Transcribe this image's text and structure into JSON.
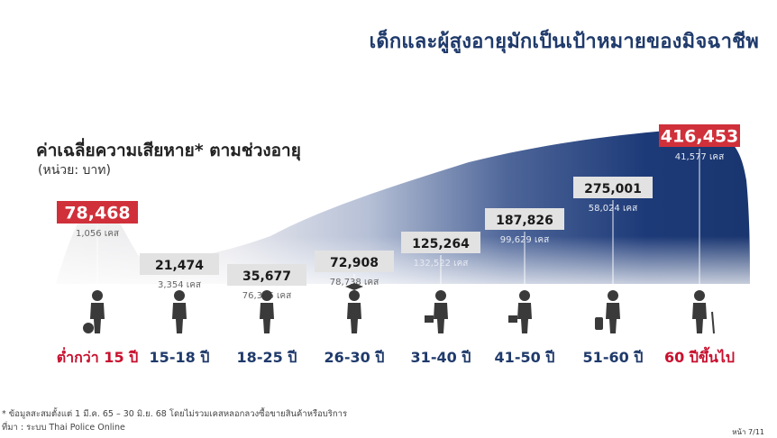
{
  "title": "เด็กและผู้สูงอายุมักเป็นเป้าหมายของมิจฉาชีพ",
  "subtitle": "ค่าเฉลี่ยความเสียหาย* ตามช่วงอายุ",
  "unit_label": "(หน่วย: บาท)",
  "footnote_line1": "* ข้อมูลสะสมตั้งแต่ 1 มี.ค. 65 – 30 มิ.ย. 68 โดยไม่รวมเคสหลอกลวงซื้อขายสินค้าหรือบริการ",
  "footnote_line2": "ที่มา : ระบบ Thai Police Online",
  "page_label": "หน้า 7/11",
  "colors": {
    "highlight": "#d0303a",
    "normal_box": "#e2e2e2",
    "curve_dark": "#1d3a78",
    "curve_light": "#eaeaea",
    "age_normal": "#1f3a6b",
    "age_highlight": "#c8102e"
  },
  "chart_data": {
    "type": "area",
    "title": "ค่าเฉลี่ยความเสียหาย* ตามช่วงอายุ",
    "ylabel": "(หน่วย: บาท)",
    "categories": [
      "ต่ำกว่า 15 ปี",
      "15-18 ปี",
      "18-25 ปี",
      "26-30 ปี",
      "31-40 ปี",
      "41-50 ปี",
      "51-60 ปี",
      "60 ปีขึ้นไป"
    ],
    "values": [
      78468,
      21474,
      35677,
      72908,
      125264,
      187826,
      275001,
      416453
    ],
    "value_labels": [
      "78,468",
      "21,474",
      "35,677",
      "72,908",
      "125,264",
      "187,826",
      "275,001",
      "416,453"
    ],
    "case_labels": [
      "1,056 เคส",
      "3,354 เคส",
      "76,346 เคส",
      "78,738 เคส",
      "132,522 เคส",
      "99,629 เคส",
      "58,024 เคส",
      "41,577 เคส"
    ],
    "highlighted": [
      true,
      false,
      false,
      false,
      false,
      false,
      false,
      true
    ],
    "icons": [
      "child-ball-icon",
      "running-teen-icon",
      "headphones-youth-icon",
      "graduate-icon",
      "briefcase-walker-icon",
      "briefcase-walker-icon",
      "luggage-traveler-icon",
      "elderly-cane-icon"
    ]
  }
}
